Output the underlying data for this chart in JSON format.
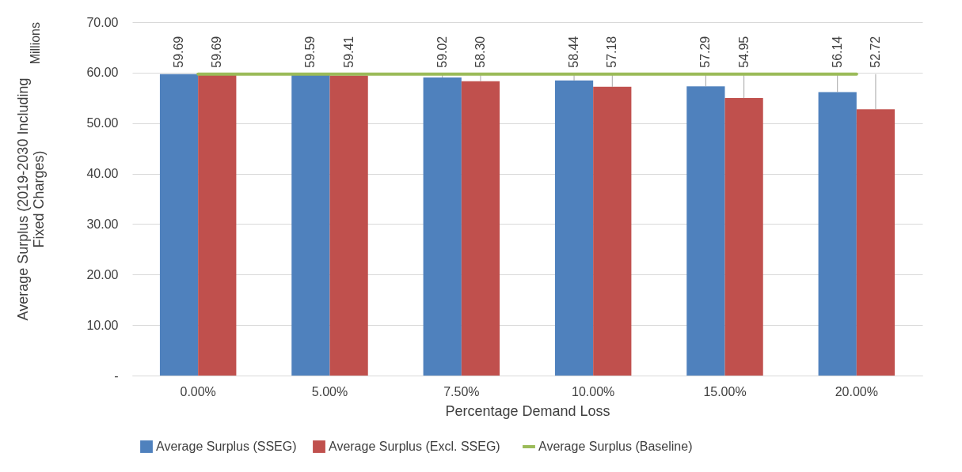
{
  "chart_data": {
    "type": "bar",
    "xlabel": "Percentage Demand Loss",
    "ylabel": "Average Surplus (2019-2030 Including Fixed Charges)",
    "annotations": [
      "Millions"
    ],
    "categories": [
      "0.00%",
      "5.00%",
      "7.50%",
      "10.00%",
      "15.00%",
      "20.00%"
    ],
    "series": [
      {
        "name": "Average Surplus (SSEG)",
        "color": "#4f81bd",
        "values": [
          59.69,
          59.59,
          59.02,
          58.44,
          57.29,
          56.14
        ],
        "value_labels": [
          "59.69",
          "59.59",
          "59.02",
          "58.44",
          "57.29",
          "56.14"
        ]
      },
      {
        "name": "Average Surplus (Excl. SSEG)",
        "color": "#c0504d",
        "values": [
          59.69,
          59.41,
          58.3,
          57.18,
          54.95,
          52.72
        ],
        "value_labels": [
          "59.69",
          "59.41",
          "58.30",
          "57.18",
          "54.95",
          "52.72"
        ]
      },
      {
        "name": "Average Surplus (Baseline)",
        "type": "line",
        "color": "#9bbb59",
        "values": [
          59.7,
          59.7,
          59.7,
          59.7,
          59.7,
          59.7
        ]
      }
    ],
    "ylim": [
      0,
      70
    ],
    "yticks": [
      {
        "value": 0,
        "label": "-"
      },
      {
        "value": 10,
        "label": "10.00"
      },
      {
        "value": 20,
        "label": "20.00"
      },
      {
        "value": 30,
        "label": "30.00"
      },
      {
        "value": 40,
        "label": "40.00"
      },
      {
        "value": 50,
        "label": "50.00"
      },
      {
        "value": 60,
        "label": "60.00"
      },
      {
        "value": 70,
        "label": "70.00"
      }
    ],
    "grid": "y",
    "legend": "bottom"
  }
}
